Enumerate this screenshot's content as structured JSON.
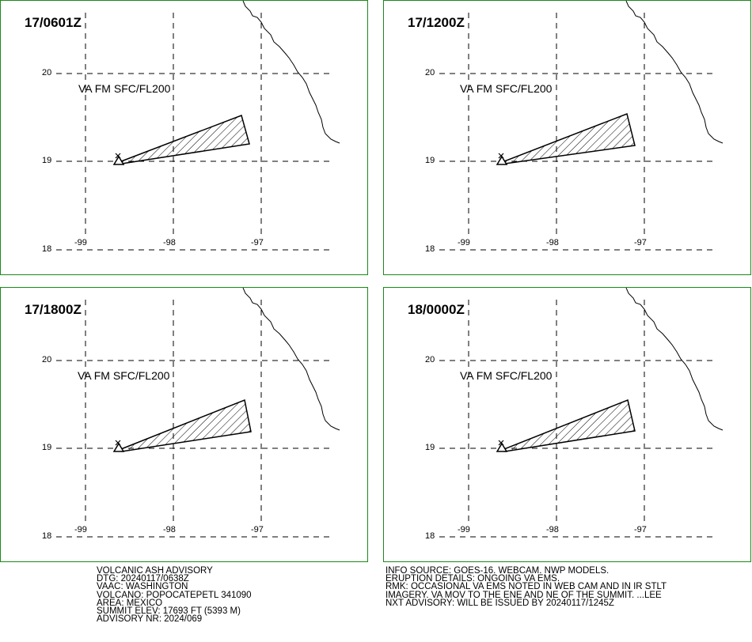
{
  "panels": [
    {
      "title": "17/0601Z",
      "label": "VA FM SFC/FL200"
    },
    {
      "title": "17/1200Z",
      "label": "VA FM SFC/FL200"
    },
    {
      "title": "17/1800Z",
      "label": "VA FM SFC/FL200"
    },
    {
      "title": "18/0000Z",
      "label": "VA FM SFC/FL200"
    }
  ],
  "lat_labels": [
    "20",
    "19",
    "18"
  ],
  "lon_labels": [
    "-99",
    "-98",
    "-97"
  ],
  "advisory": {
    "lines": [
      "VOLCANIC ASH ADVISORY",
      "DTG: 20240117/0638Z",
      "VAAC: WASHINGTON",
      "VOLCANO: POPOCATEPETL 341090",
      "AREA: MEXICO",
      "SUMMIT ELEV: 17693 FT (5393 M)",
      "ADVISORY NR: 2024/069"
    ]
  },
  "info": {
    "lines": [
      "INFO SOURCE: GOES-16. WEBCAM. NWP MODELS.",
      "ERUPTION DETAILS: ONGOING VA EMS.",
      "RMK: OCCASIONAL VA EMS NOTED IN WEB CAM AND IN IR STLT",
      "IMAGERY. VA MOV TO THE ENE AND NE OF THE SUMMIT. ...LEE",
      "NXT ADVISORY: WILL BE ISSUED BY 20240117/1245Z"
    ]
  },
  "colors": {
    "panel_border": "#1a8a1a",
    "lines": "#000000"
  }
}
